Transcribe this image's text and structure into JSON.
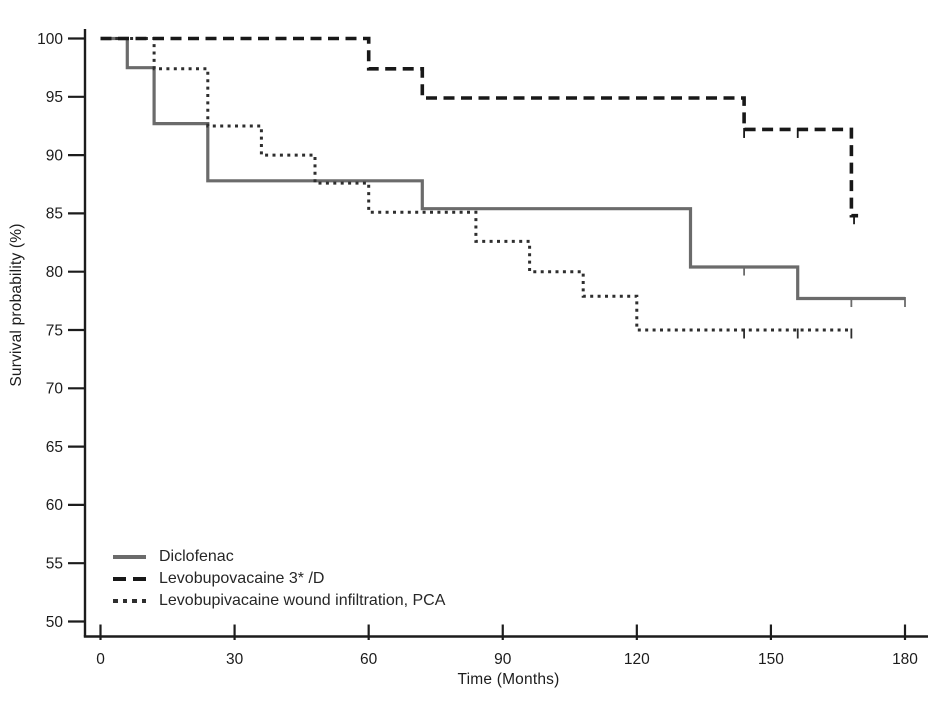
{
  "chart_data": {
    "type": "line",
    "subtype": "kaplan-meier-step",
    "title": "",
    "xlabel": "Time (Months)",
    "ylabel": "Survival probability (%)",
    "xlim": [
      0,
      180
    ],
    "ylim": [
      50,
      100
    ],
    "xticks": [
      0,
      30,
      60,
      90,
      120,
      150,
      180
    ],
    "yticks": [
      100,
      95,
      90,
      85,
      80,
      75,
      70,
      65,
      60,
      55,
      50
    ],
    "grid": false,
    "legend_position": "inside-lower-left",
    "colors": {
      "axis": "#1c1c1c",
      "tick_label": "#1c1c1c",
      "diclofenac": "#6b6b6b",
      "levobupovacaine": "#181818",
      "levobupivacaine_pca": "#2e2e2e",
      "background": "#ffffff"
    },
    "series": [
      {
        "name": "Diclofenac",
        "slug": "diclofenac",
        "style": "solid",
        "color": "#6b6b6b",
        "points": [
          [
            0,
            100
          ],
          [
            6,
            100
          ],
          [
            6,
            97.5
          ],
          [
            12,
            97.5
          ],
          [
            12,
            92.7
          ],
          [
            24,
            92.7
          ],
          [
            24,
            87.8
          ],
          [
            72,
            87.8
          ],
          [
            72,
            85.4
          ],
          [
            132,
            85.4
          ],
          [
            132,
            80.4
          ],
          [
            156,
            80.4
          ],
          [
            156,
            77.7
          ],
          [
            180,
            77.7
          ]
        ],
        "censored": [
          [
            144,
            80.4
          ],
          [
            168,
            77.7
          ],
          [
            180,
            77.7
          ]
        ]
      },
      {
        "name": "Levobupovacaine 3* /D",
        "slug": "levobupovacaine-3-d",
        "style": "dashed",
        "color": "#181818",
        "points": [
          [
            0,
            100
          ],
          [
            60,
            100
          ],
          [
            60,
            97.4
          ],
          [
            72,
            97.4
          ],
          [
            72,
            94.9
          ],
          [
            144,
            94.9
          ],
          [
            144,
            92.2
          ],
          [
            168,
            92.2
          ],
          [
            168,
            84.8
          ],
          [
            169.5,
            84.8
          ]
        ],
        "censored": [
          [
            144,
            92.2
          ],
          [
            156,
            92.2
          ],
          [
            168.6,
            84.8
          ]
        ]
      },
      {
        "name": "Levobupivacaine wound infiltration, PCA",
        "slug": "levobupivacaine-wound-infiltration-pca",
        "style": "dotted",
        "color": "#2e2e2e",
        "points": [
          [
            0,
            100
          ],
          [
            12,
            100
          ],
          [
            12,
            97.4
          ],
          [
            24,
            97.4
          ],
          [
            24,
            92.5
          ],
          [
            36,
            92.5
          ],
          [
            36,
            90
          ],
          [
            48,
            90
          ],
          [
            48,
            87.6
          ],
          [
            60,
            87.6
          ],
          [
            60,
            85.1
          ],
          [
            84,
            85.1
          ],
          [
            84,
            82.6
          ],
          [
            96,
            82.6
          ],
          [
            96,
            80
          ],
          [
            108,
            80
          ],
          [
            108,
            77.9
          ],
          [
            120,
            77.9
          ],
          [
            120,
            75
          ],
          [
            168,
            75
          ]
        ],
        "censored": [
          [
            144,
            75
          ],
          [
            156,
            75
          ],
          [
            168,
            75
          ]
        ]
      }
    ]
  }
}
